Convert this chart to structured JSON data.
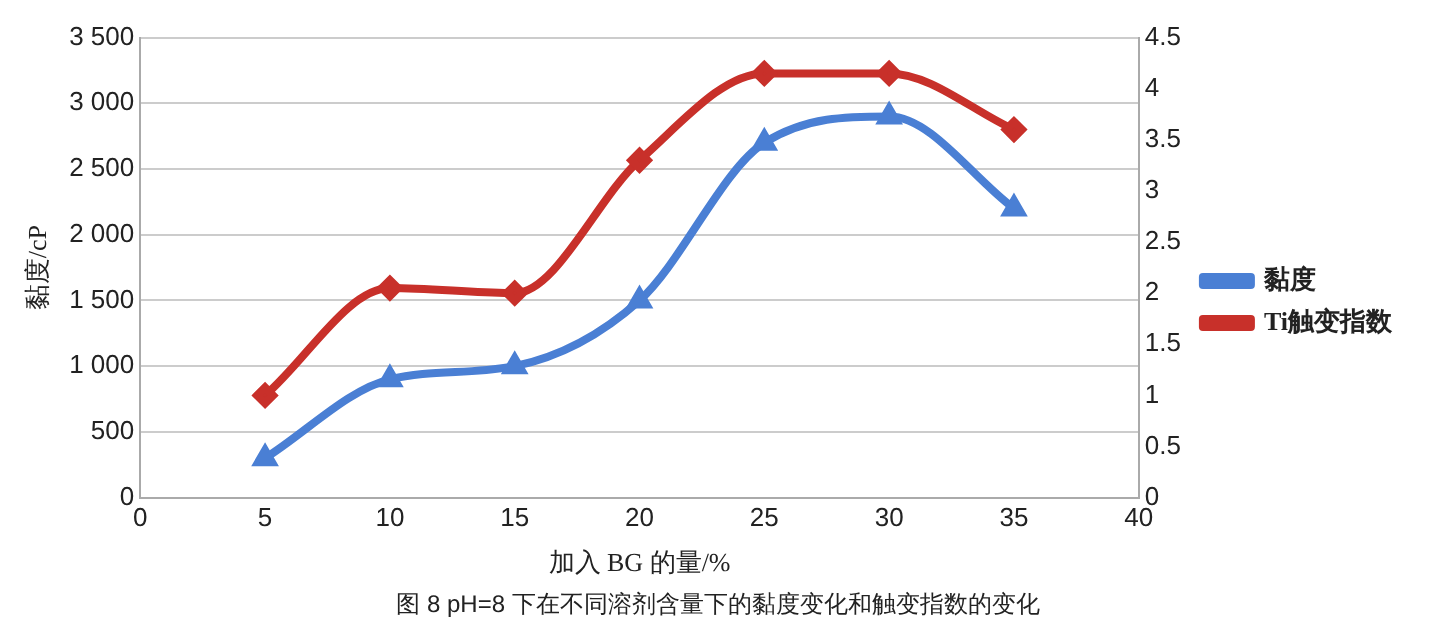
{
  "chart_data": {
    "type": "line",
    "xlabel": "加入 BG 的量/%",
    "ylabel": "黏度/cP",
    "annotations": [
      "图 8 pH=8 下在不同溶剂含量下的黏度变化和触变指数的变化"
    ],
    "x": [
      5,
      10,
      15,
      20,
      25,
      30,
      35
    ],
    "series": [
      {
        "name": "黏度",
        "color": "#4a7fd4",
        "marker": "triangle",
        "values": [
          300,
          900,
          1000,
          1500,
          2700,
          2900,
          2200
        ]
      },
      {
        "name": "Ti触变指数",
        "color": "#c8302a",
        "marker": "diamond",
        "axis": "y2",
        "values": [
          1.0,
          2.05,
          2.0,
          3.3,
          4.15,
          4.15,
          3.6
        ]
      }
    ],
    "xlim": [
      0,
      40
    ],
    "xticks": [
      0,
      5,
      10,
      15,
      20,
      25,
      30,
      35,
      40
    ],
    "ylim": [
      0,
      3500
    ],
    "yticks": [
      0,
      500,
      {
        "value": 1000,
        "label": "1 000"
      },
      {
        "value": 1500,
        "label": "1 500"
      },
      {
        "value": 2000,
        "label": "2 000"
      },
      {
        "value": 2500,
        "label": "2 500"
      },
      {
        "value": 3000,
        "label": "3 000"
      },
      {
        "value": 3500,
        "label": "3 500"
      }
    ],
    "y2lim": [
      0,
      4.5
    ],
    "y2ticks": [
      0,
      0.5,
      1,
      1.5,
      2,
      2.5,
      3,
      3.5,
      4,
      4.5
    ],
    "grid": "y",
    "legend": "right"
  }
}
